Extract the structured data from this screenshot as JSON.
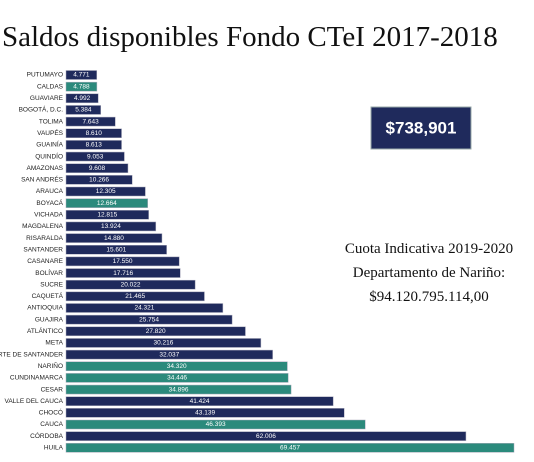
{
  "chart_data": {
    "type": "barh",
    "title": "Saldos disponibles Fondo CTeI 2017-2018",
    "total_box": "$738,901",
    "annotation": [
      "Cuota Indicativa 2019-2020",
      "Departamento de Nariño:",
      "$94.120.795.114,00"
    ],
    "categories": [
      "PUTUMAYO",
      "CALDAS",
      "GUAVIARE",
      "BOGOTÁ, D.C.",
      "TOLIMA",
      "VAUPÉS",
      "GUAINÍA",
      "QUINDÍO",
      "AMAZONAS",
      "SAN ANDRÉS",
      "ARAUCA",
      "BOYACÁ",
      "VICHADA",
      "MAGDALENA",
      "RISARALDA",
      "SANTANDER",
      "CASANARE",
      "BOLÍVAR",
      "SUCRE",
      "CAQUETÁ",
      "ANTIOQUIA",
      "GUAJIRA",
      "ATLÁNTICO",
      "META",
      "NORTE DE SANTANDER",
      "NARIÑO",
      "CUNDINAMARCA",
      "CESAR",
      "VALLE DEL CAUCA",
      "CHOCÓ",
      "CAUCA",
      "CÓRDOBA",
      "HUILA"
    ],
    "values": [
      4771,
      4788,
      4992,
      5384,
      7643,
      8610,
      8613,
      9053,
      9608,
      10266,
      12305,
      12664,
      12815,
      13924,
      14880,
      15601,
      17550,
      17716,
      20022,
      21465,
      24321,
      25754,
      27820,
      30216,
      32037,
      34320,
      34446,
      34896,
      41424,
      43139,
      46393,
      62006,
      69457
    ],
    "value_labels": [
      "4.771",
      "4.788",
      "4.992",
      "5.384",
      "7.643",
      "8.610",
      "8.613",
      "9.053",
      "9.608",
      "10.266",
      "12.305",
      "12.664",
      "12.815",
      "13.924",
      "14.880",
      "15.601",
      "17.550",
      "17.716",
      "20.022",
      "21.465",
      "24.321",
      "25.754",
      "27.820",
      "30.216",
      "32.037",
      "34.320",
      "34.446",
      "34.896",
      "41.424",
      "43.139",
      "46.393",
      "62.006",
      "69.457"
    ],
    "colors": [
      "#1f2a5c",
      "#2b8a7c",
      "#1f2a5c",
      "#1f2a5c",
      "#1f2a5c",
      "#1f2a5c",
      "#1f2a5c",
      "#1f2a5c",
      "#1f2a5c",
      "#1f2a5c",
      "#1f2a5c",
      "#2b8a7c",
      "#1f2a5c",
      "#1f2a5c",
      "#1f2a5c",
      "#1f2a5c",
      "#1f2a5c",
      "#1f2a5c",
      "#1f2a5c",
      "#1f2a5c",
      "#1f2a5c",
      "#1f2a5c",
      "#1f2a5c",
      "#1f2a5c",
      "#1f2a5c",
      "#2b8a7c",
      "#2b8a7c",
      "#2b8a7c",
      "#1f2a5c",
      "#1f2a5c",
      "#2b8a7c",
      "#1f2a5c",
      "#2b8a7c"
    ]
  }
}
